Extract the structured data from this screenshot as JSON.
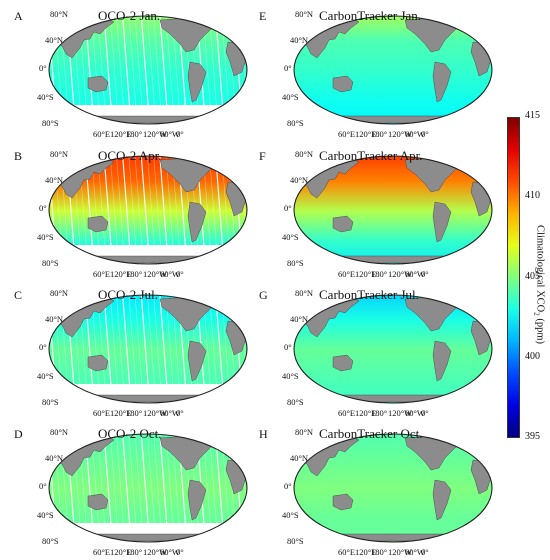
{
  "panels": [
    {
      "letter": "A",
      "title": "OCO-2 Jan.",
      "product": "OCO-2",
      "month": "Jan",
      "mean_xco2": 403.5,
      "zonal_xco2": [
        405.5,
        404.2,
        403.4,
        403.0,
        402.6
      ],
      "coverage": "swaths"
    },
    {
      "letter": "B",
      "title": "OCO-2 Apr.",
      "product": "OCO-2",
      "month": "Apr",
      "mean_xco2": 408.0,
      "zonal_xco2": [
        411.5,
        410.5,
        406.5,
        403.5,
        401.5
      ],
      "coverage": "swaths"
    },
    {
      "letter": "C",
      "title": "OCO-2 Jul.",
      "product": "OCO-2",
      "month": "Jul",
      "mean_xco2": 403.0,
      "zonal_xco2": [
        402.0,
        403.0,
        404.5,
        404.0,
        403.5
      ],
      "coverage": "swaths"
    },
    {
      "letter": "D",
      "title": "OCO-2 Oct.",
      "product": "OCO-2",
      "month": "Oct",
      "mean_xco2": 404.5,
      "zonal_xco2": [
        404.0,
        404.5,
        405.0,
        404.5,
        404.5
      ],
      "coverage": "swaths"
    },
    {
      "letter": "E",
      "title": "CarbonTracker Jan.",
      "product": "CarbonTracker",
      "month": "Jan",
      "mean_xco2": 403.5,
      "zonal_xco2": [
        406.0,
        404.0,
        403.5,
        402.8,
        402.3
      ],
      "coverage": "full"
    },
    {
      "letter": "F",
      "title": "CarbonTracker Apr.",
      "product": "CarbonTracker",
      "month": "Apr",
      "mean_xco2": 408.0,
      "zonal_xco2": [
        411.5,
        410.0,
        406.0,
        403.5,
        402.0
      ],
      "coverage": "full"
    },
    {
      "letter": "G",
      "title": "CarbonTracker  Jul.",
      "product": "CarbonTracker",
      "month": "Jul",
      "mean_xco2": 403.0,
      "zonal_xco2": [
        401.5,
        403.0,
        404.5,
        404.0,
        403.5
      ],
      "coverage": "full"
    },
    {
      "letter": "H",
      "title": "CarbonTracker  Oct.",
      "product": "CarbonTracker",
      "month": "Oct",
      "mean_xco2": 404.5,
      "zonal_xco2": [
        404.0,
        404.5,
        405.0,
        404.5,
        404.5
      ],
      "coverage": "full"
    }
  ],
  "lat_labels": [
    "80°N",
    "40°N",
    "0°",
    "40°S",
    "80°S"
  ],
  "lon_labels": [
    "60°E",
    "120°E",
    "180°",
    "120°W",
    "60°W",
    "0°"
  ],
  "colorbar": {
    "label": "Climatological XCO",
    "label_sub": "2",
    "label_unit": " (ppm)",
    "min": 395,
    "max": 415,
    "ticks": [
      "415",
      "410",
      "405",
      "400",
      "395"
    ],
    "colormap": "jet"
  },
  "colors": {
    "land": "#8c8c8c",
    "land_edge": "#3a3a3a",
    "no_data": "#ffffff"
  }
}
